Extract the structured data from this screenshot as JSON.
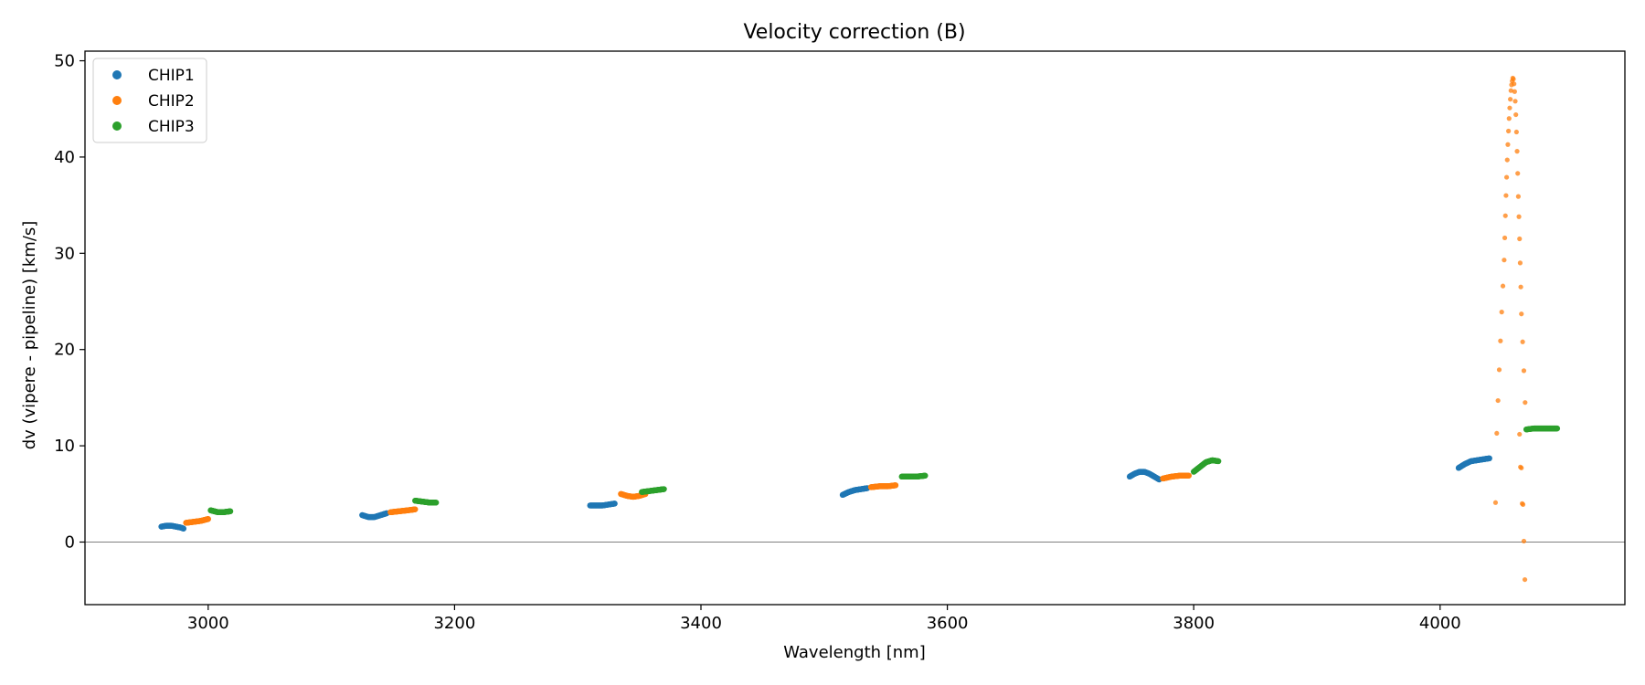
{
  "chart_data": {
    "type": "scatter",
    "title": "Velocity correction (B)",
    "xlabel": "Wavelength [nm]",
    "ylabel": "dv (vipere - pipeline) [km/s]",
    "xlim": [
      2900,
      4150
    ],
    "ylim": [
      -6.5,
      51
    ],
    "xticks": [
      3000,
      3200,
      3400,
      3600,
      3800,
      4000
    ],
    "yticks": [
      0,
      10,
      20,
      30,
      40,
      50
    ],
    "hline_y": 0,
    "legend_position": "upper left",
    "series": [
      {
        "name": "CHIP1",
        "color": "#1f77b4",
        "segments": [
          {
            "x": [
              2962,
              2966,
              2970,
              2974,
              2978,
              2980
            ],
            "y": [
              1.6,
              1.7,
              1.7,
              1.6,
              1.5,
              1.4
            ]
          },
          {
            "x": [
              3125,
              3130,
              3135,
              3140,
              3145
            ],
            "y": [
              2.8,
              2.6,
              2.6,
              2.8,
              3.0
            ]
          },
          {
            "x": [
              3310,
              3315,
              3320,
              3325,
              3330
            ],
            "y": [
              3.8,
              3.8,
              3.8,
              3.9,
              4.0
            ]
          },
          {
            "x": [
              3515,
              3520,
              3525,
              3530,
              3535
            ],
            "y": [
              4.9,
              5.2,
              5.4,
              5.5,
              5.6
            ]
          },
          {
            "x": [
              3748,
              3752,
              3756,
              3760,
              3764,
              3768,
              3772
            ],
            "y": [
              6.8,
              7.1,
              7.3,
              7.3,
              7.1,
              6.8,
              6.5
            ]
          },
          {
            "x": [
              4015,
              4020,
              4025,
              4030,
              4035,
              4040
            ],
            "y": [
              7.7,
              8.1,
              8.4,
              8.5,
              8.6,
              8.7
            ]
          }
        ]
      },
      {
        "name": "CHIP2",
        "color": "#ff7f0e",
        "segments": [
          {
            "x": [
              2982,
              2988,
              2994,
              3000
            ],
            "y": [
              2.0,
              2.1,
              2.2,
              2.4
            ]
          },
          {
            "x": [
              3148,
              3155,
              3162,
              3168
            ],
            "y": [
              3.1,
              3.2,
              3.3,
              3.4
            ]
          },
          {
            "x": [
              3335,
              3340,
              3345,
              3350,
              3355
            ],
            "y": [
              5.0,
              4.8,
              4.7,
              4.8,
              5.0
            ]
          },
          {
            "x": [
              3538,
              3545,
              3552,
              3558
            ],
            "y": [
              5.7,
              5.8,
              5.8,
              5.9
            ]
          },
          {
            "x": [
              3775,
              3782,
              3789,
              3796
            ],
            "y": [
              6.6,
              6.8,
              6.9,
              6.9
            ]
          }
        ],
        "scatter": {
          "x": [
            4045,
            4046,
            4047,
            4048,
            4049,
            4050,
            4051,
            4052,
            4052.5,
            4053,
            4053.5,
            4054,
            4054.5,
            4055,
            4055.5,
            4056,
            4056.5,
            4057,
            4057.5,
            4058,
            4058.5,
            4059,
            4059.5,
            4060,
            4060.5,
            4061,
            4061.5,
            4062,
            4062.5,
            4063,
            4063.5,
            4064,
            4064.5,
            4065,
            4065.5,
            4066,
            4067,
            4068,
            4069
          ],
          "y": [
            4.1,
            11.3,
            14.7,
            17.9,
            20.9,
            23.9,
            26.6,
            29.3,
            31.6,
            33.9,
            36.0,
            37.9,
            39.7,
            41.3,
            42.7,
            44.0,
            45.1,
            46.0,
            46.9,
            47.5,
            47.9,
            48.2,
            48.1,
            47.6,
            46.8,
            45.8,
            44.4,
            42.6,
            40.6,
            38.3,
            35.9,
            33.8,
            31.5,
            29.0,
            26.5,
            23.7,
            20.8,
            17.8,
            14.5
          ]
        },
        "scatter_tail": {
          "x": [
            4064.5,
            4065.2,
            4066,
            4066.6,
            4067.3,
            4068,
            4068.8
          ],
          "y": [
            11.2,
            7.8,
            7.7,
            4.0,
            3.9,
            0.1,
            -3.9
          ]
        }
      },
      {
        "name": "CHIP3",
        "color": "#2ca02c",
        "segments": [
          {
            "x": [
              3002,
              3008,
              3012,
              3018
            ],
            "y": [
              3.3,
              3.1,
              3.1,
              3.2
            ]
          },
          {
            "x": [
              3168,
              3174,
              3180,
              3185
            ],
            "y": [
              4.3,
              4.2,
              4.1,
              4.1
            ]
          },
          {
            "x": [
              3352,
              3358,
              3364,
              3370
            ],
            "y": [
              5.2,
              5.3,
              5.4,
              5.5
            ]
          },
          {
            "x": [
              3563,
              3569,
              3575,
              3582
            ],
            "y": [
              6.8,
              6.8,
              6.8,
              6.9
            ]
          },
          {
            "x": [
              3800,
              3805,
              3810,
              3815,
              3820
            ],
            "y": [
              7.3,
              7.8,
              8.3,
              8.5,
              8.4
            ]
          },
          {
            "x": [
              4070,
              4076,
              4082,
              4088,
              4095
            ],
            "y": [
              11.7,
              11.8,
              11.8,
              11.8,
              11.8
            ]
          }
        ]
      }
    ]
  }
}
